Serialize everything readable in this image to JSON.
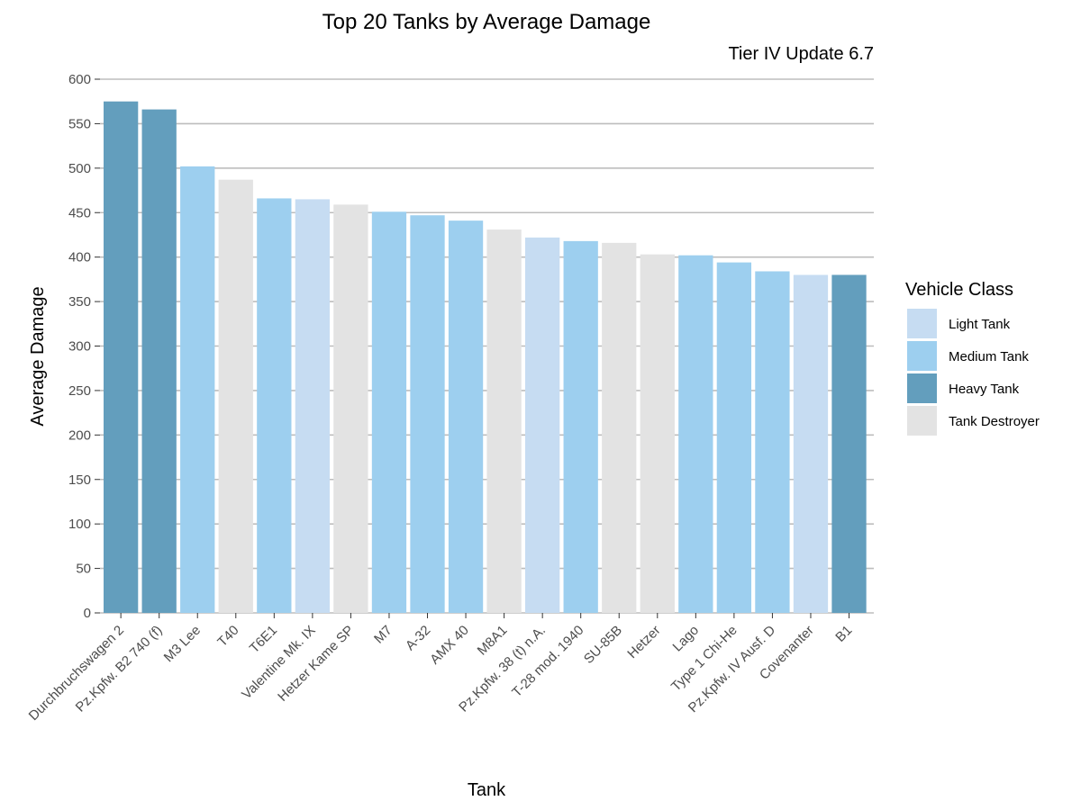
{
  "chart_data": {
    "type": "bar",
    "title": "Top 20 Tanks by Average Damage",
    "subtitle": "Tier IV Update 6.7",
    "xlabel": "Tank",
    "ylabel": "Average Damage",
    "ylim": [
      0,
      600
    ],
    "yticks": [
      "0",
      "50",
      "100",
      "150",
      "200",
      "250",
      "300",
      "350",
      "400",
      "450",
      "500",
      "550",
      "600"
    ],
    "grid": "horizontal",
    "legend_position": "right",
    "legend": {
      "title": "Vehicle Class",
      "entries": [
        {
          "label": "Light Tank",
          "color": "#c6dcf2"
        },
        {
          "label": "Medium Tank",
          "color": "#9dcfef"
        },
        {
          "label": "Heavy Tank",
          "color": "#639ebd"
        },
        {
          "label": "Tank Destroyer",
          "color": "#e3e3e3"
        }
      ]
    },
    "categories": [
      "Durchbruchswagen 2",
      "Pz.Kpfw. B2 740 (f)",
      "M3 Lee",
      "T40",
      "T6E1",
      "Valentine Mk. IX",
      "Hetzer Kame SP",
      "M7",
      "A-32",
      "AMX 40",
      "M8A1",
      "Pz.Kpfw. 38 (t) n.A.",
      "T-28 mod. 1940",
      "SU-85B",
      "Hetzer",
      "Lago",
      "Type 1 Chi-He",
      "Pz.Kpfw. IV Ausf. D",
      "Covenanter",
      "B1"
    ],
    "values": [
      575,
      566,
      502,
      487,
      466,
      465,
      459,
      451,
      447,
      441,
      431,
      422,
      418,
      416,
      403,
      402,
      394,
      384,
      380,
      380
    ],
    "classes": [
      "Heavy Tank",
      "Heavy Tank",
      "Medium Tank",
      "Tank Destroyer",
      "Medium Tank",
      "Light Tank",
      "Tank Destroyer",
      "Medium Tank",
      "Medium Tank",
      "Medium Tank",
      "Tank Destroyer",
      "Light Tank",
      "Medium Tank",
      "Tank Destroyer",
      "Tank Destroyer",
      "Medium Tank",
      "Medium Tank",
      "Medium Tank",
      "Light Tank",
      "Heavy Tank"
    ]
  }
}
